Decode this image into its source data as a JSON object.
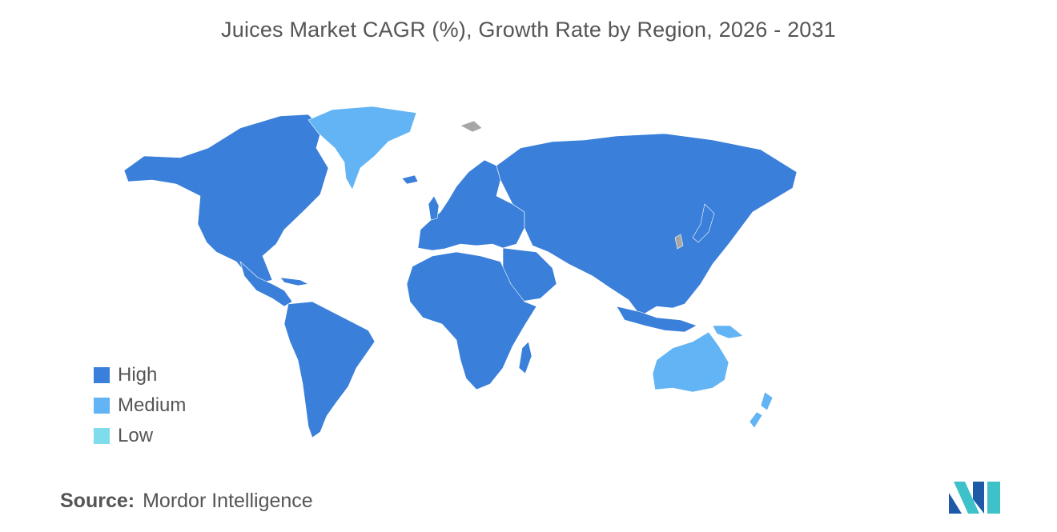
{
  "header": {
    "title": "Juices Market CAGR (%), Growth Rate by Region, 2026 - 2031"
  },
  "legend": {
    "items": [
      {
        "label": "High",
        "color": "#3a7fd9"
      },
      {
        "label": "Medium",
        "color": "#63b4f4"
      },
      {
        "label": "Low",
        "color": "#7fdcec"
      }
    ]
  },
  "map": {
    "no_data_color": "#a6a6a6",
    "regions": [
      {
        "region": "North America",
        "category": "High"
      },
      {
        "region": "South America",
        "category": "High"
      },
      {
        "region": "Europe",
        "category": "High"
      },
      {
        "region": "Asia",
        "category": "High"
      },
      {
        "region": "Africa",
        "category": "High"
      },
      {
        "region": "Greenland",
        "category": "Medium"
      },
      {
        "region": "Australia",
        "category": "Medium"
      },
      {
        "region": "New Zealand",
        "category": "Medium"
      },
      {
        "region": "Papua New Guinea",
        "category": "Medium"
      }
    ]
  },
  "footer": {
    "source_label": "Source:",
    "source_value": "Mordor Intelligence"
  },
  "logo": {
    "icon": "mordor-intelligence-logo",
    "colors": [
      "#1e5aa8",
      "#3ec1c9"
    ]
  }
}
